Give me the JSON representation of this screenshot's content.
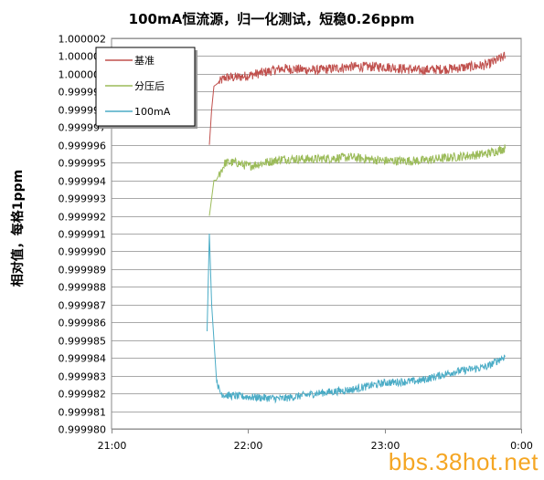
{
  "chart_data": {
    "type": "line",
    "title": "100mA恒流源，归一化测试，短稳0.26ppm",
    "xlabel": "",
    "ylabel": "相对值，每格1ppm",
    "x_ticks": [
      "21:00",
      "22:00",
      "23:00",
      "0:00"
    ],
    "xlim": [
      "21:00",
      "0:00"
    ],
    "ylim": [
      0.99998,
      1.000002
    ],
    "y_ticks": [
      "0.999980",
      "0.999981",
      "0.999982",
      "0.999983",
      "0.999984",
      "0.999985",
      "0.999986",
      "0.999987",
      "0.999988",
      "0.999989",
      "0.999990",
      "0.999991",
      "0.999992",
      "0.999993",
      "0.999994",
      "0.999995",
      "0.999996",
      "0.999997",
      "0.999998",
      "0.999999",
      "1.000000",
      "1.000001",
      "1.000002"
    ],
    "grid": true,
    "legend_position": "top-left",
    "x_unit": "time",
    "series": [
      {
        "name": "基准",
        "color": "#c0504d",
        "x": [
          "21:43",
          "21:44",
          "21:45",
          "21:46",
          "21:48",
          "21:50",
          "21:55",
          "22:00",
          "22:15",
          "22:30",
          "22:45",
          "23:00",
          "23:15",
          "23:30",
          "23:45",
          "23:53"
        ],
        "values": [
          0.999996,
          0.999998,
          0.9999993,
          0.9999994,
          0.9999996,
          0.9999998,
          0.9999998,
          0.9999999,
          1.0000003,
          1.0000002,
          1.0000004,
          1.0000004,
          1.0000002,
          1.0000003,
          1.0000005,
          1.000001
        ]
      },
      {
        "name": "分压后",
        "color": "#9bbb59",
        "x": [
          "21:43",
          "21:44",
          "21:45",
          "21:46",
          "21:48",
          "21:50",
          "21:55",
          "22:00",
          "22:15",
          "22:30",
          "22:45",
          "23:00",
          "23:15",
          "23:30",
          "23:45",
          "23:53"
        ],
        "values": [
          0.999992,
          0.999993,
          0.999994,
          0.999994,
          0.9999945,
          0.999995,
          0.999995,
          0.9999948,
          0.9999952,
          0.9999952,
          0.9999953,
          0.9999951,
          0.9999951,
          0.9999953,
          0.9999955,
          0.9999958
        ]
      },
      {
        "name": "100mA",
        "color": "#4bacc6",
        "x": [
          "21:42",
          "21:43",
          "21:44",
          "21:45",
          "21:46",
          "21:47",
          "21:48",
          "21:50",
          "22:00",
          "22:15",
          "22:30",
          "22:45",
          "23:00",
          "23:15",
          "23:30",
          "23:45",
          "23:53"
        ],
        "values": [
          0.9999855,
          0.999991,
          0.999987,
          0.999985,
          0.999983,
          0.9999823,
          0.999982,
          0.9999819,
          0.9999818,
          0.9999817,
          0.999982,
          0.9999822,
          0.9999826,
          0.9999827,
          0.9999832,
          0.9999835,
          0.9999841
        ]
      }
    ]
  },
  "watermark": "bbs.38hot.net"
}
